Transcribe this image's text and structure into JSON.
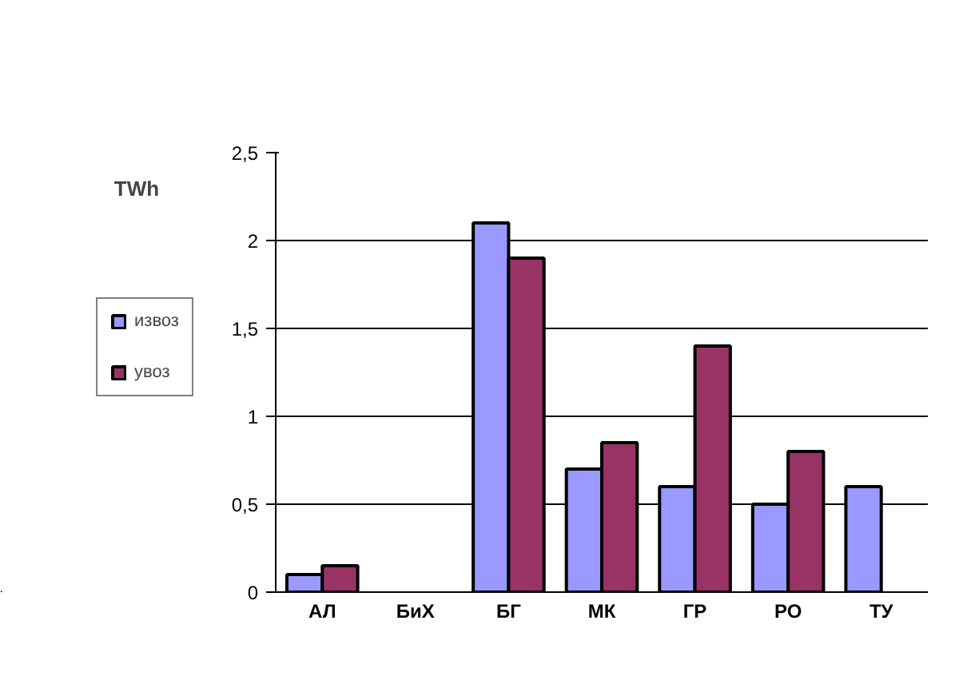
{
  "chart_data": {
    "type": "bar",
    "ylabel": "TWh",
    "categories": [
      "АЛ",
      "БиХ",
      "БГ",
      "МК",
      "ГР",
      "РО",
      "ТУ"
    ],
    "series": [
      {
        "name": "извоз",
        "color": "#9999ff",
        "values": [
          0.1,
          null,
          2.1,
          0.7,
          0.6,
          0.5,
          0.6
        ]
      },
      {
        "name": "увоз",
        "color": "#993366",
        "values": [
          0.15,
          null,
          1.9,
          0.85,
          1.4,
          0.8,
          null
        ]
      }
    ],
    "ylim": [
      0,
      2.5
    ],
    "yticks": [
      0,
      {
        "value": 0.5,
        "label": "0,5"
      },
      1,
      {
        "value": 1.5,
        "label": "1,5"
      },
      2,
      {
        "value": 2.5,
        "label": "2,5"
      }
    ],
    "grid": "y",
    "legend": "left"
  }
}
